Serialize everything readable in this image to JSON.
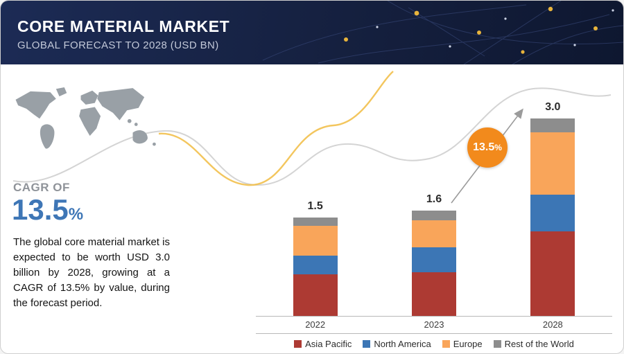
{
  "header": {
    "title": "CORE MATERIAL MARKET",
    "subtitle": "GLOBAL FORECAST TO 2028 (USD BN)"
  },
  "sidebar": {
    "cagr_label": "CAGR OF",
    "cagr_value": "13.5",
    "cagr_unit": "%",
    "description": "The global core material market is expected to be worth USD 3.0 billion by 2028, growing at a CAGR of 13.5% by value, during the forecast period."
  },
  "annotation": {
    "badge_value": "13.5",
    "badge_unit": "%"
  },
  "chart_data": {
    "type": "bar",
    "stacked": true,
    "title": "Core Material Market, Global Forecast to 2028 (USD BN)",
    "xlabel": "",
    "ylabel": "USD BN",
    "ylim": [
      0,
      3.2
    ],
    "grid": false,
    "legend_position": "bottom",
    "categories": [
      "2022",
      "2023",
      "2028"
    ],
    "totals": [
      "1.5",
      "1.6",
      "3.0"
    ],
    "series": [
      {
        "name": "Asia Pacific",
        "color": "#ad3a33",
        "values": [
          0.63,
          0.66,
          1.28
        ]
      },
      {
        "name": "North America",
        "color": "#3c76b5",
        "values": [
          0.29,
          0.38,
          0.56
        ]
      },
      {
        "name": "Europe",
        "color": "#f9a55a",
        "values": [
          0.45,
          0.41,
          0.95
        ]
      },
      {
        "name": "Rest of the World",
        "color": "#8d8d8d",
        "values": [
          0.13,
          0.15,
          0.21
        ]
      }
    ],
    "annotations": [
      "CAGR 13.5% arrow from 2023 to 2028"
    ]
  },
  "colors": {
    "header_bg": "#18244a",
    "accent_blue": "#3e76b6",
    "accent_orange": "#f28a1c",
    "map_gray": "#99a0a6"
  }
}
